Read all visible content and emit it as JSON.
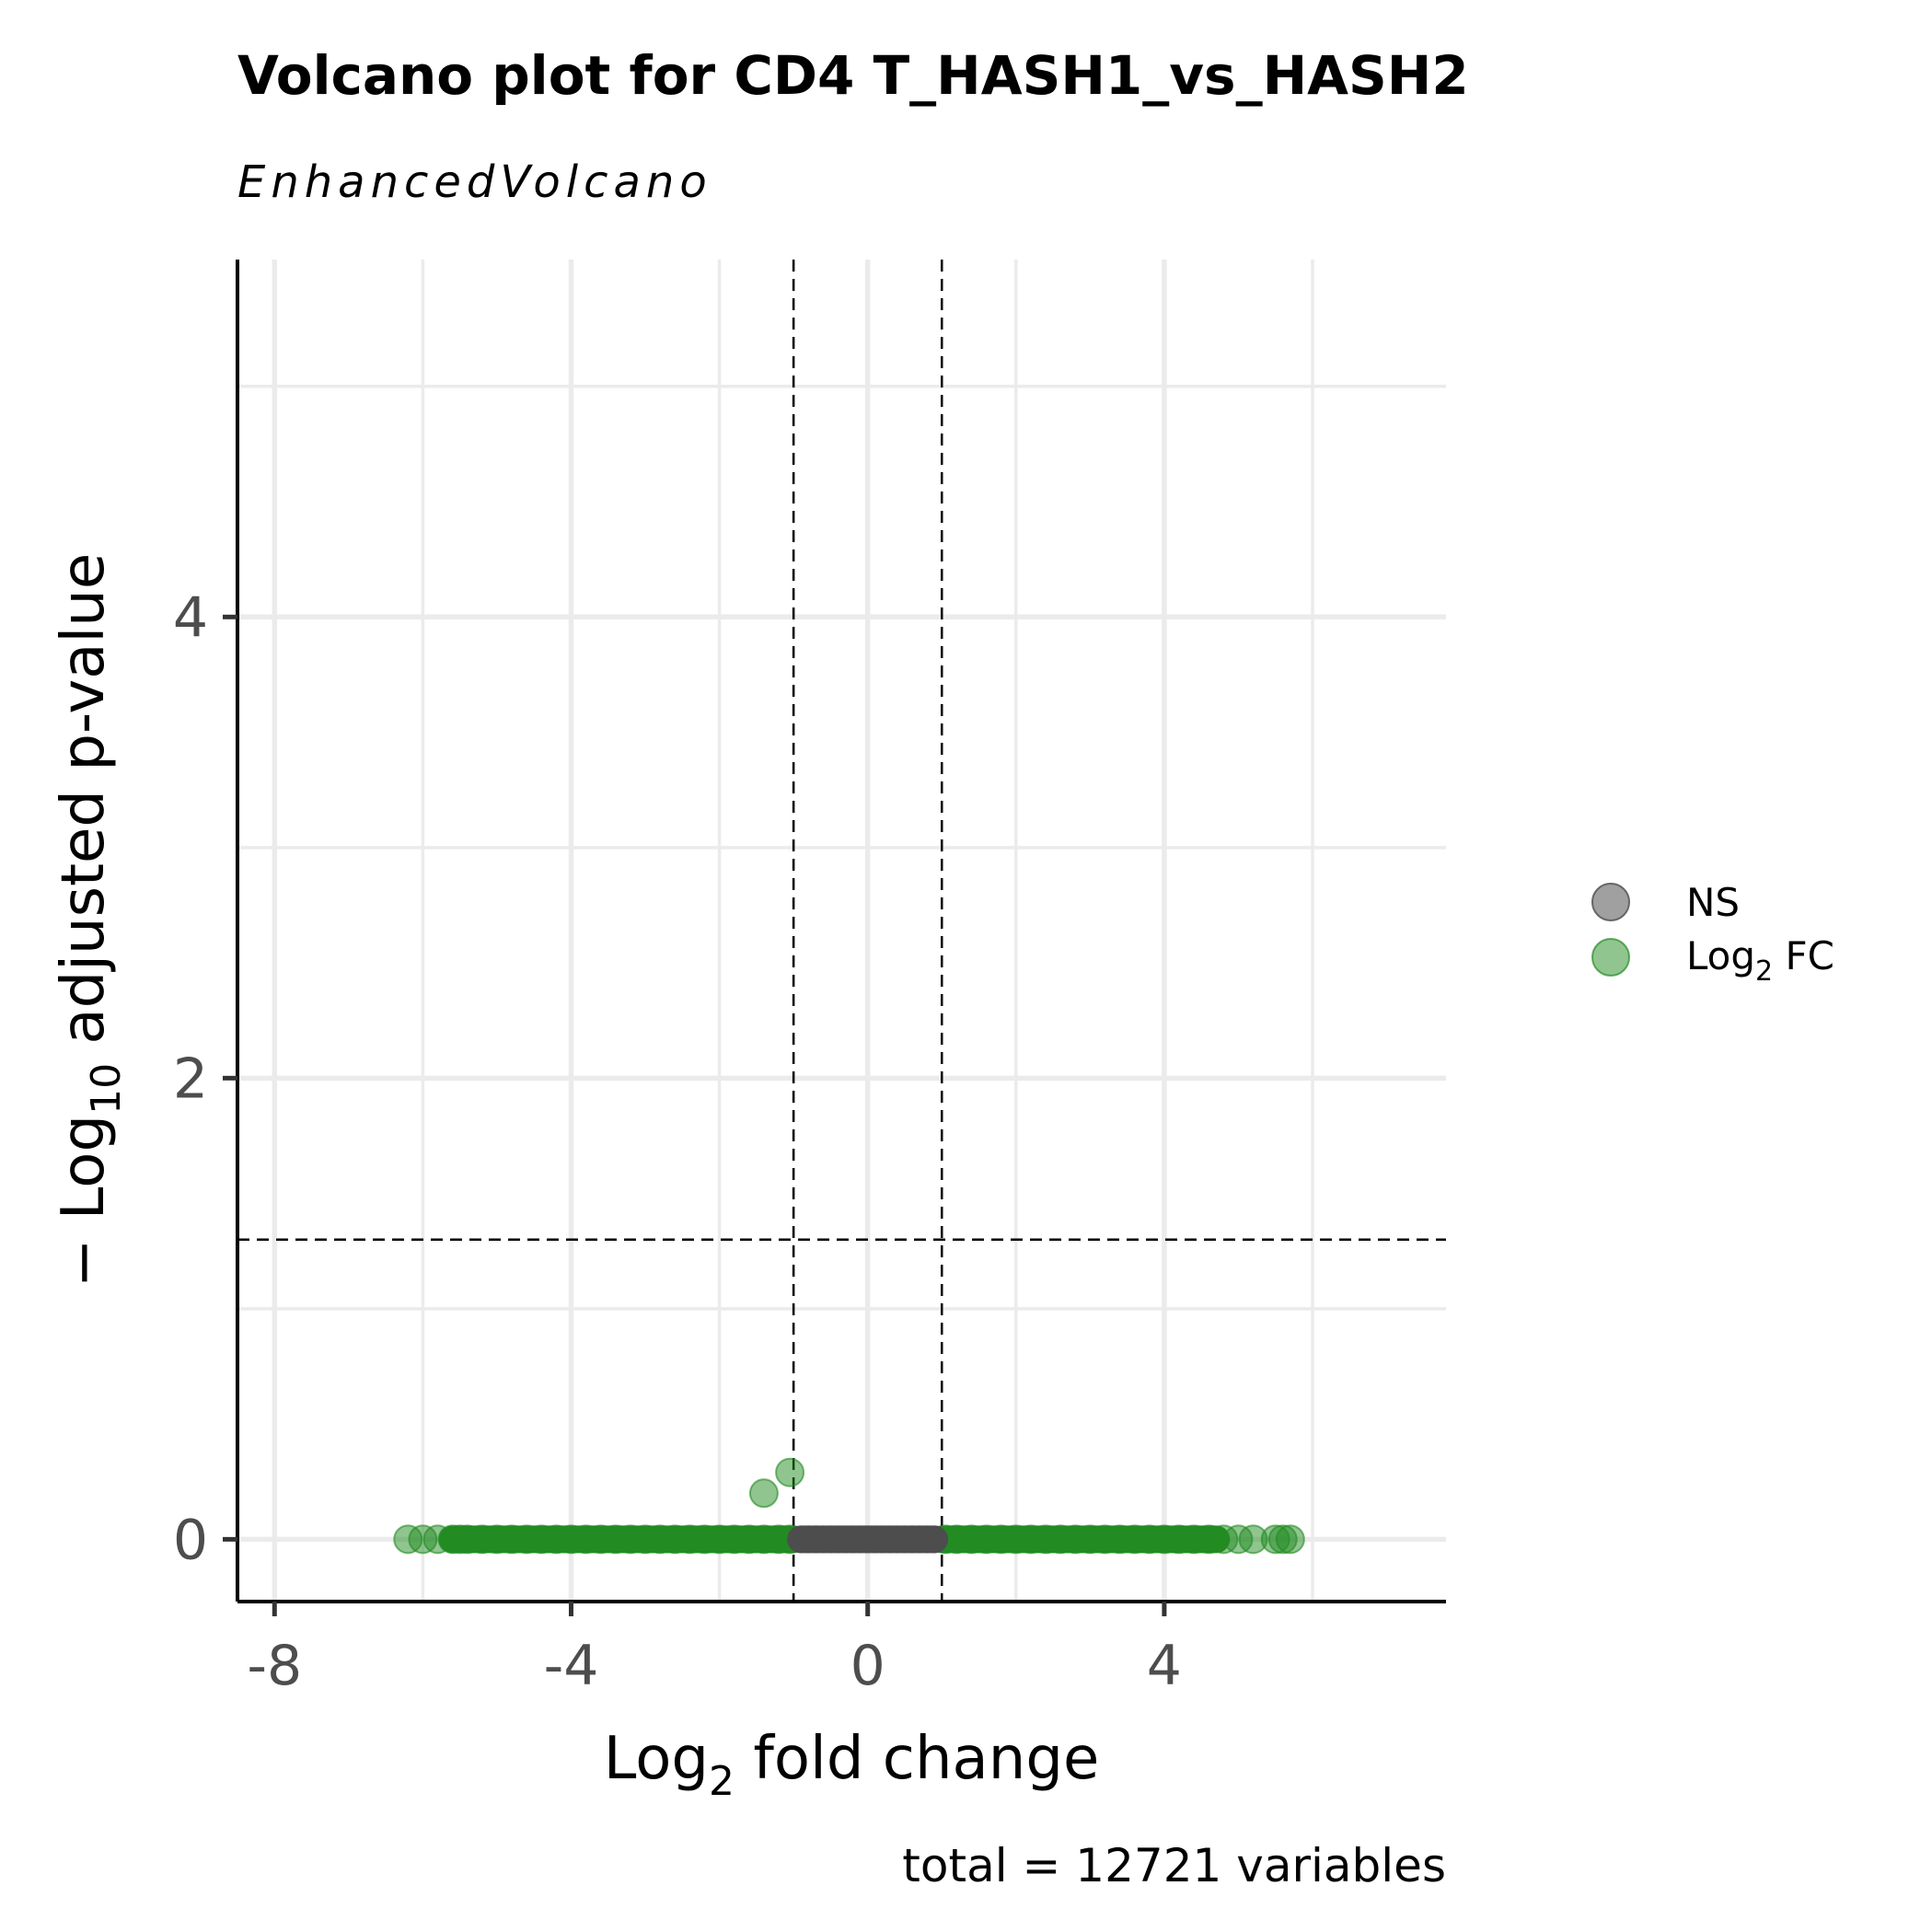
{
  "chart_data": {
    "type": "scatter",
    "title": "Volcano plot for CD4 T_HASH1_vs_HASH2",
    "subtitle": "EnhancedVolcano",
    "xlabel": {
      "base": "Log",
      "sub": "2",
      "rest": " fold change"
    },
    "ylabel": {
      "prefix": "− Log",
      "sub": "10",
      "rest": " adjusted p-value"
    },
    "caption": "total = 12721 variables",
    "xlim": [
      -8.5,
      7.8
    ],
    "ylim": [
      -0.27,
      5.55
    ],
    "x_ticks": [
      -8,
      -4,
      0,
      4
    ],
    "x_tick_labels": [
      "-8",
      "-4",
      "0",
      "4"
    ],
    "y_ticks": [
      0,
      2,
      4
    ],
    "y_tick_labels": [
      "0",
      "2",
      "4"
    ],
    "grid": true,
    "cutoffs": {
      "fc": [
        -1,
        1
      ],
      "p_line": 1.3
    },
    "legend": {
      "placement": "right",
      "entries": [
        {
          "label": "NS",
          "color": "#808080"
        },
        {
          "label_base": "Log",
          "label_sub": "2",
          "label_rest": " FC",
          "color": "#228b22"
        }
      ]
    },
    "colors": {
      "ns": "#4d4d4d",
      "fc": "#228b22"
    },
    "series": [
      {
        "name": "NS",
        "x": [
          -1.0,
          -0.9,
          -0.8,
          -0.7,
          -0.6,
          -0.5,
          -0.4,
          -0.3,
          -0.2,
          -0.1,
          0.0,
          0.1,
          0.2,
          0.3,
          0.4,
          0.5,
          0.6,
          0.7,
          0.8,
          0.9,
          1.0
        ],
        "y": [
          0,
          0,
          0,
          0,
          0,
          0,
          0,
          0,
          0,
          0,
          0,
          0,
          0,
          0,
          0,
          0,
          0,
          0,
          0,
          0,
          0
        ]
      },
      {
        "name": "Log2 FC",
        "x": [
          -6.2,
          -6.0,
          -5.8,
          -5.6,
          -5.5,
          -5.4,
          -5.2,
          -5.0,
          -4.8,
          -4.6,
          -4.4,
          -4.2,
          -4.0,
          -3.8,
          -3.6,
          -3.4,
          -3.2,
          -3.0,
          -2.8,
          -2.6,
          -2.4,
          -2.2,
          -2.0,
          -1.8,
          -1.6,
          -1.4,
          -1.2,
          -1.05,
          1.05,
          1.2,
          1.4,
          1.6,
          1.8,
          2.0,
          2.2,
          2.4,
          2.6,
          2.8,
          3.0,
          3.2,
          3.4,
          3.6,
          3.8,
          4.0,
          4.2,
          4.4,
          4.6,
          4.8,
          5.0,
          5.2,
          5.5,
          5.6,
          5.7,
          -1.4,
          -1.05
        ],
        "y": [
          0,
          0,
          0,
          0,
          0,
          0,
          0,
          0,
          0,
          0,
          0,
          0,
          0,
          0,
          0,
          0,
          0,
          0,
          0,
          0,
          0,
          0,
          0,
          0,
          0,
          0,
          0,
          0,
          0,
          0,
          0,
          0,
          0,
          0,
          0,
          0,
          0,
          0,
          0,
          0,
          0,
          0,
          0,
          0,
          0,
          0,
          0,
          0,
          0,
          0,
          0,
          0,
          0,
          0.2,
          0.29
        ]
      }
    ]
  }
}
